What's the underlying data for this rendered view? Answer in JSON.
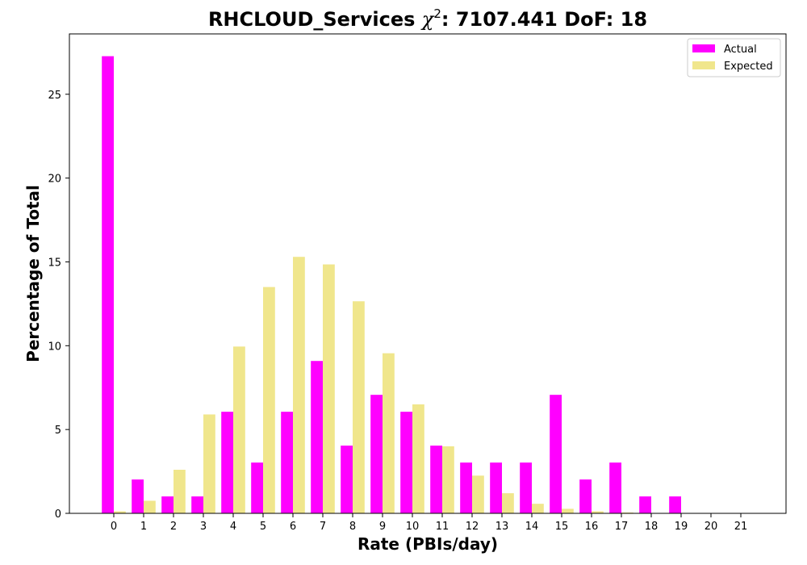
{
  "chart_data": {
    "type": "bar",
    "title": {
      "prefix": "RHCLOUD_Services ",
      "chi_symbol": "χ",
      "chi_exponent": "2",
      "suffix": ": 7107.441 DoF: 18"
    },
    "xlabel": "Rate (PBIs/day)",
    "ylabel": "Percentage of Total",
    "categories": [
      "0",
      "1",
      "2",
      "3",
      "4",
      "5",
      "6",
      "7",
      "8",
      "9",
      "10",
      "11",
      "12",
      "13",
      "14",
      "15",
      "16",
      "17",
      "18",
      "19",
      "20",
      "21"
    ],
    "ylim": [
      0,
      28.6
    ],
    "yticks": [
      0,
      5,
      10,
      15,
      20,
      25
    ],
    "legend_position": "upper-right",
    "series": [
      {
        "name": "Actual",
        "color": "#ff00ff",
        "values": [
          27.27,
          2.02,
          1.01,
          1.01,
          6.06,
          3.03,
          6.06,
          9.09,
          4.04,
          7.07,
          6.06,
          4.04,
          3.03,
          3.03,
          3.03,
          7.07,
          2.02,
          3.03,
          1.01,
          1.01,
          0,
          0
        ]
      },
      {
        "name": "Expected",
        "color": "#f0e68c",
        "values": [
          0.12,
          0.75,
          2.6,
          5.9,
          9.95,
          13.5,
          15.3,
          14.85,
          12.65,
          9.55,
          6.5,
          4.0,
          2.25,
          1.2,
          0.57,
          0.27,
          0.12,
          0.05,
          0.02,
          0.01,
          0,
          0
        ]
      }
    ]
  }
}
